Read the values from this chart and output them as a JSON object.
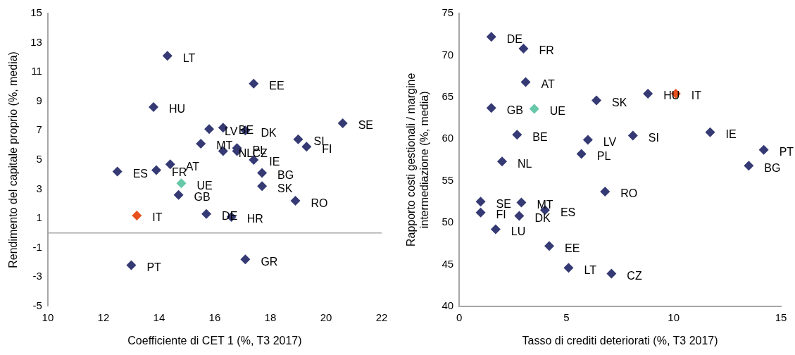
{
  "chart_data": [
    {
      "type": "scatter",
      "xlabel": "Coefficiente di CET 1 (%, T3 2017)",
      "ylabel": "Rendimento del capitale proprio (%, media)",
      "marker": "diamond",
      "xlim": [
        10,
        22
      ],
      "xticks": [
        10,
        12,
        14,
        16,
        18,
        20,
        22
      ],
      "ylim": [
        -5,
        15
      ],
      "yticks": [
        -5,
        -3,
        -1,
        1,
        3,
        5,
        7,
        9,
        11,
        13,
        15
      ],
      "ref_lines": [
        {
          "axis": "y",
          "value": 0,
          "color": "#a6a6a6"
        }
      ],
      "x": [
        14.3,
        17.4,
        13.8,
        20.6,
        15.8,
        16.3,
        17.1,
        19.0,
        19.3,
        15.5,
        16.3,
        16.8,
        16.8,
        17.4,
        14.4,
        13.9,
        12.5,
        14.8,
        14.7,
        17.7,
        17.7,
        18.9,
        13.2,
        15.7,
        16.6,
        13.0,
        17.1
      ],
      "values": [
        12.1,
        10.2,
        8.6,
        7.5,
        7.1,
        7.2,
        7.0,
        6.4,
        5.9,
        6.1,
        5.6,
        5.8,
        5.6,
        5.0,
        4.7,
        4.3,
        4.2,
        3.4,
        2.6,
        4.1,
        3.2,
        2.2,
        1.2,
        1.3,
        1.1,
        -2.2,
        -1.8
      ],
      "colors": [
        "#353a74",
        "#353a74",
        "#353a74",
        "#353a74",
        "#353a74",
        "#353a74",
        "#353a74",
        "#353a74",
        "#353a74",
        "#353a74",
        "#353a74",
        "#353a74",
        "#353a74",
        "#353a74",
        "#353a74",
        "#353a74",
        "#353a74",
        "#66c8a8",
        "#353a74",
        "#353a74",
        "#353a74",
        "#353a74",
        "#e8501e",
        "#353a74",
        "#353a74",
        "#353a74",
        "#353a74"
      ],
      "annotations": [
        {
          "text": "LT",
          "x": 14.3,
          "y": 12.1
        },
        {
          "text": "EE",
          "x": 17.4,
          "y": 10.2
        },
        {
          "text": "HU",
          "x": 13.8,
          "y": 8.6
        },
        {
          "text": "SE",
          "x": 20.6,
          "y": 7.5
        },
        {
          "text": "LV",
          "x": 15.8,
          "y": 7.1
        },
        {
          "text": "BE",
          "x": 16.3,
          "y": 7.2
        },
        {
          "text": "DK",
          "x": 17.1,
          "y": 7.0
        },
        {
          "text": "SI",
          "x": 19.0,
          "y": 6.4
        },
        {
          "text": "FI",
          "x": 19.3,
          "y": 5.9
        },
        {
          "text": "MT",
          "x": 15.5,
          "y": 6.1
        },
        {
          "text": "NL",
          "x": 16.3,
          "y": 5.6
        },
        {
          "text": "PL",
          "x": 16.8,
          "y": 5.8
        },
        {
          "text": "CZ",
          "x": 16.8,
          "y": 5.6
        },
        {
          "text": "IE",
          "x": 17.4,
          "y": 5.0
        },
        {
          "text": "AT",
          "x": 14.4,
          "y": 4.7
        },
        {
          "text": "FR",
          "x": 13.9,
          "y": 4.3
        },
        {
          "text": "ES",
          "x": 12.5,
          "y": 4.2
        },
        {
          "text": "UE",
          "x": 14.8,
          "y": 3.4
        },
        {
          "text": "GB",
          "x": 14.7,
          "y": 2.6
        },
        {
          "text": "BG",
          "x": 17.7,
          "y": 4.1
        },
        {
          "text": "SK",
          "x": 17.7,
          "y": 3.2
        },
        {
          "text": "RO",
          "x": 18.9,
          "y": 2.2
        },
        {
          "text": "IT",
          "x": 13.2,
          "y": 1.2
        },
        {
          "text": "DE",
          "x": 15.7,
          "y": 1.3
        },
        {
          "text": "HR",
          "x": 16.6,
          "y": 1.1
        },
        {
          "text": "PT",
          "x": 13.0,
          "y": -2.2
        },
        {
          "text": "GR",
          "x": 17.1,
          "y": -1.8
        }
      ]
    },
    {
      "type": "scatter",
      "xlabel": "Tasso di crediti deteriorati (%, T3 2017)",
      "ylabel": "Rapporto costi gestionali / margine\nintermediazione (%, media)",
      "marker": "diamond",
      "xlim": [
        0,
        15
      ],
      "xticks": [
        0,
        5,
        10,
        15
      ],
      "ylim": [
        40,
        75
      ],
      "yticks": [
        40,
        45,
        50,
        55,
        60,
        65,
        70,
        75
      ],
      "x": [
        1.5,
        3.0,
        3.1,
        10.1,
        8.8,
        6.4,
        1.5,
        3.5,
        2.7,
        11.7,
        8.1,
        6.0,
        14.2,
        5.7,
        13.5,
        2.0,
        6.8,
        1.0,
        2.9,
        4.0,
        1.0,
        2.8,
        1.7,
        4.2,
        5.1,
        7.1
      ],
      "values": [
        72.2,
        70.8,
        66.8,
        65.4,
        65.4,
        64.6,
        63.7,
        63.6,
        60.5,
        60.8,
        60.4,
        59.9,
        58.7,
        58.2,
        56.8,
        57.3,
        53.7,
        52.5,
        52.4,
        51.5,
        51.2,
        50.8,
        49.2,
        47.2,
        44.6,
        43.9
      ],
      "colors": [
        "#353a74",
        "#353a74",
        "#353a74",
        "#e8501e",
        "#353a74",
        "#353a74",
        "#353a74",
        "#66c8a8",
        "#353a74",
        "#353a74",
        "#353a74",
        "#353a74",
        "#353a74",
        "#353a74",
        "#353a74",
        "#353a74",
        "#353a74",
        "#353a74",
        "#353a74",
        "#353a74",
        "#353a74",
        "#353a74",
        "#353a74",
        "#353a74",
        "#353a74",
        "#353a74"
      ],
      "annotations": [
        {
          "text": "DE",
          "x": 1.5,
          "y": 72.2
        },
        {
          "text": "FR",
          "x": 3.0,
          "y": 70.8
        },
        {
          "text": "AT",
          "x": 3.1,
          "y": 66.8
        },
        {
          "text": "IT",
          "x": 10.1,
          "y": 65.4
        },
        {
          "text": "HU",
          "x": 8.8,
          "y": 65.4
        },
        {
          "text": "SK",
          "x": 6.4,
          "y": 64.6
        },
        {
          "text": "GB",
          "x": 1.5,
          "y": 63.7
        },
        {
          "text": "UE",
          "x": 3.5,
          "y": 63.6
        },
        {
          "text": "BE",
          "x": 2.7,
          "y": 60.5
        },
        {
          "text": "IE",
          "x": 11.7,
          "y": 60.8
        },
        {
          "text": "SI",
          "x": 8.1,
          "y": 60.4
        },
        {
          "text": "LV",
          "x": 6.0,
          "y": 59.9
        },
        {
          "text": "PT",
          "x": 14.2,
          "y": 58.7
        },
        {
          "text": "PL",
          "x": 5.7,
          "y": 58.2
        },
        {
          "text": "BG",
          "x": 13.5,
          "y": 56.8
        },
        {
          "text": "NL",
          "x": 2.0,
          "y": 57.3
        },
        {
          "text": "RO",
          "x": 6.8,
          "y": 53.7
        },
        {
          "text": "SE",
          "x": 1.0,
          "y": 52.5
        },
        {
          "text": "MT",
          "x": 2.9,
          "y": 52.4
        },
        {
          "text": "ES",
          "x": 4.0,
          "y": 51.5
        },
        {
          "text": "FI",
          "x": 1.0,
          "y": 51.2
        },
        {
          "text": "DK",
          "x": 2.8,
          "y": 50.8
        },
        {
          "text": "LU",
          "x": 1.7,
          "y": 49.2
        },
        {
          "text": "EE",
          "x": 4.2,
          "y": 47.2
        },
        {
          "text": "LT",
          "x": 5.1,
          "y": 44.6
        },
        {
          "text": "CZ",
          "x": 7.1,
          "y": 43.9
        }
      ]
    }
  ]
}
